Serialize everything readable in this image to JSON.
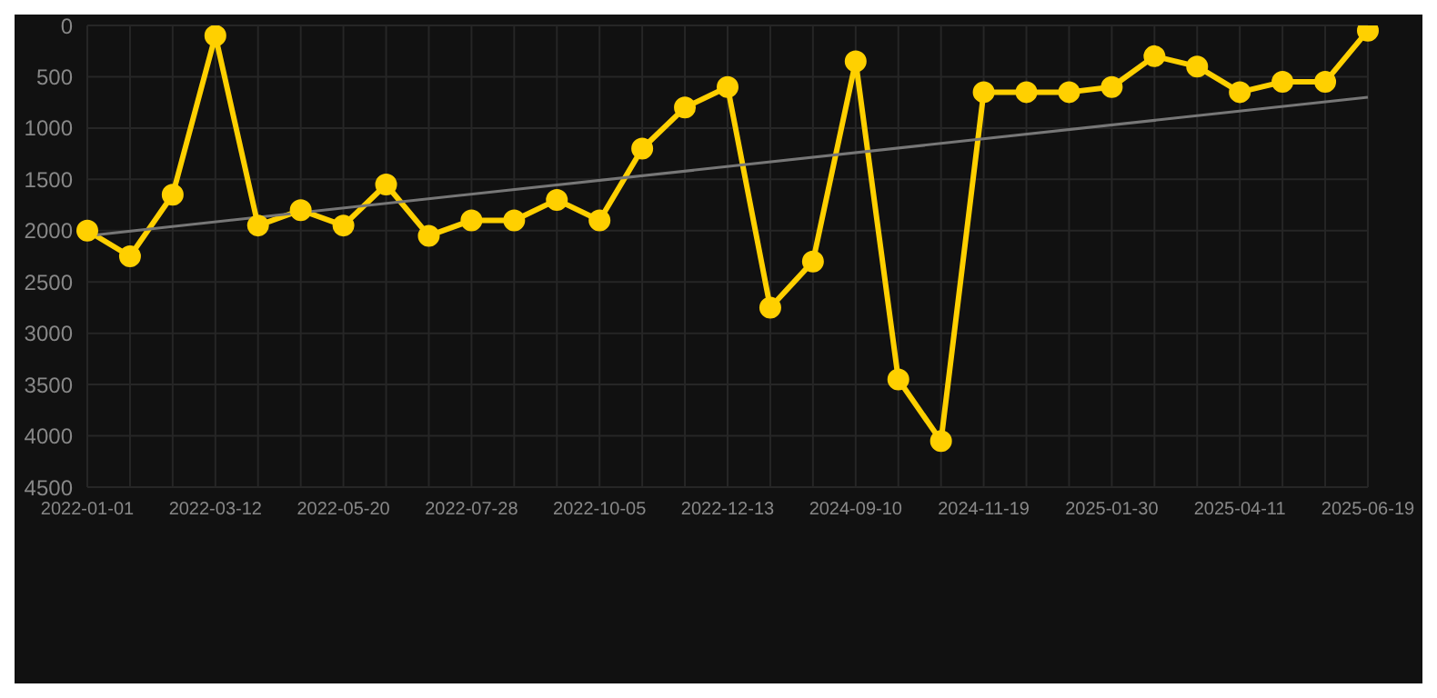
{
  "chart_data": {
    "type": "line",
    "categories": [
      "2022-01-01",
      null,
      null,
      "2022-03-12",
      null,
      null,
      "2022-05-20",
      null,
      null,
      "2022-07-28",
      null,
      null,
      "2022-10-05",
      null,
      null,
      "2022-12-13",
      null,
      null,
      "2024-09-10",
      null,
      null,
      "2024-11-19",
      null,
      null,
      "2025-01-30",
      null,
      null,
      "2025-04-11",
      null,
      null,
      "2025-06-19"
    ],
    "series": [
      {
        "color": "#ffd000",
        "marker": "circle",
        "values": [
          2000,
          2250,
          1650,
          100,
          1950,
          1800,
          1950,
          1550,
          2050,
          1900,
          1900,
          1700,
          1900,
          1200,
          800,
          600,
          2750,
          2300,
          350,
          3450,
          4050,
          650,
          650,
          650,
          600,
          300,
          400,
          650,
          550,
          550,
          50
        ]
      },
      {
        "type": "line",
        "color": "#777777",
        "marker": "none",
        "values": [
          2050,
          null,
          null,
          null,
          null,
          null,
          null,
          null,
          null,
          null,
          null,
          null,
          null,
          null,
          null,
          null,
          null,
          null,
          null,
          null,
          null,
          null,
          null,
          null,
          null,
          null,
          null,
          null,
          null,
          null,
          700
        ]
      }
    ],
    "ylim": [
      4500,
      0
    ],
    "yticks": [
      0,
      500,
      1000,
      1500,
      2000,
      2500,
      3000,
      3500,
      4000,
      4500
    ],
    "grid": true
  }
}
